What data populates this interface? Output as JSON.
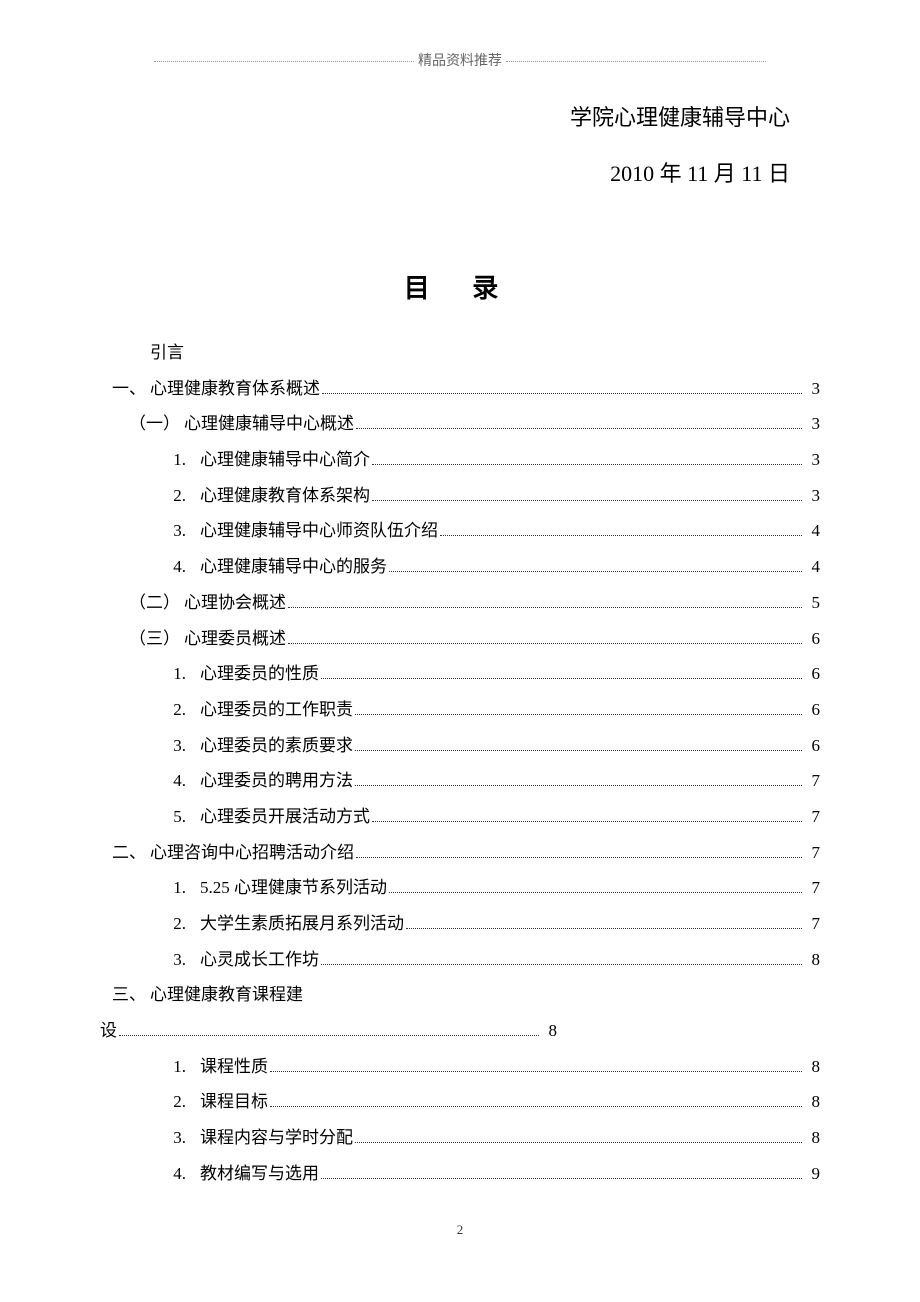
{
  "header_text": "精品资料推荐",
  "org_title": "学院心理健康辅导中心",
  "date_line": "2010 年 11 月 11 日",
  "toc_title": "目 录",
  "toc_intro_label": "引言",
  "toc_entries": [
    {
      "marker": "一、",
      "label": "心理健康教育体系概述",
      "page": "3",
      "level": 1
    },
    {
      "marker": "（一）",
      "label": "心理健康辅导中心概述",
      "page": "3",
      "level": 2
    },
    {
      "marker": "1.",
      "label": "心理健康辅导中心简介",
      "page": "3",
      "level": 3
    },
    {
      "marker": "2.",
      "label": "心理健康教育体系架构",
      "page": "3",
      "level": 3
    },
    {
      "marker": "3.",
      "label": "心理健康辅导中心师资队伍介绍",
      "page": "4",
      "level": 3
    },
    {
      "marker": "4.",
      "label": "心理健康辅导中心的服务",
      "page": "4",
      "level": 3
    },
    {
      "marker": "（二）",
      "label": "心理协会概述",
      "page": "5",
      "level": 2
    },
    {
      "marker": "（三）",
      "label": "心理委员概述",
      "page": "6",
      "level": 2
    },
    {
      "marker": "1.",
      "label": "心理委员的性质",
      "page": "6",
      "level": 3
    },
    {
      "marker": "2.",
      "label": "心理委员的工作职责",
      "page": "6",
      "level": 3
    },
    {
      "marker": "3.",
      "label": "心理委员的素质要求",
      "page": "6",
      "level": 3
    },
    {
      "marker": "4.",
      "label": "心理委员的聘用方法",
      "page": "7",
      "level": 3
    },
    {
      "marker": "5.",
      "label": "心理委员开展活动方式",
      "page": "7",
      "level": 3
    },
    {
      "marker": "二、",
      "label": "心理咨询中心招聘活动介绍",
      "page": "7",
      "level": 1
    },
    {
      "marker": "1.",
      "label": "5.25 心理健康节系列活动",
      "page": "7",
      "level": 3
    },
    {
      "marker": "2.",
      "label": "大学生素质拓展月系列活动",
      "page": "7",
      "level": 3
    },
    {
      "marker": "3.",
      "label": "心灵成长工作坊",
      "page": "8",
      "level": 3
    }
  ],
  "toc_wrap": {
    "marker": "三、",
    "label_part1": "心理健康教育课程建",
    "label_part2": "设",
    "page": "8"
  },
  "toc_tail": [
    {
      "marker": "1.",
      "label": "课程性质",
      "page": "8",
      "level": 3
    },
    {
      "marker": "2.",
      "label": "课程目标",
      "page": "8",
      "level": 3
    },
    {
      "marker": "3.",
      "label": "课程内容与学时分配",
      "page": "8",
      "level": 3
    },
    {
      "marker": "4.",
      "label": "教材编写与选用",
      "page": "9",
      "level": 3
    }
  ],
  "page_number": "2"
}
